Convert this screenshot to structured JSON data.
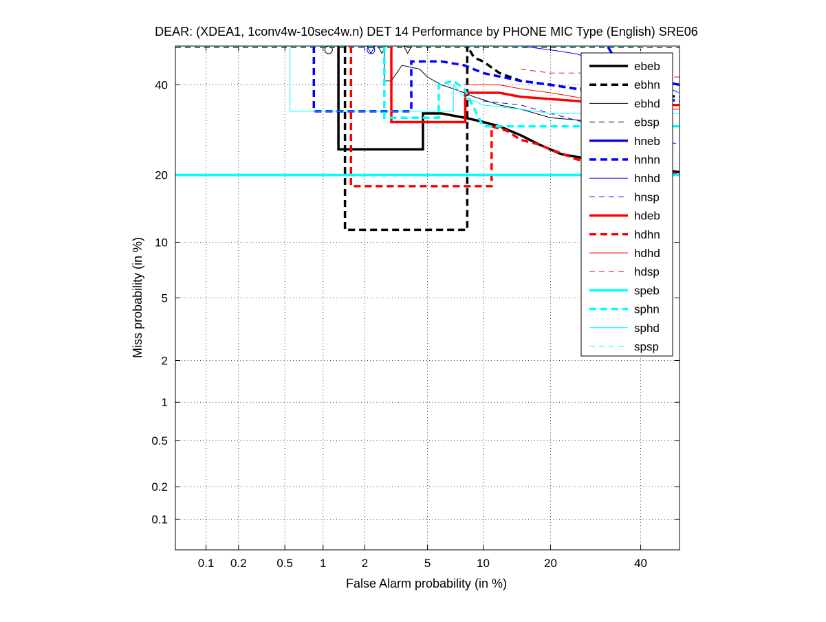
{
  "chart_data": {
    "type": "line",
    "title": "DEAR: (XDEA1, 1conv4w-10sec4w.n) DET 14 Performance by PHONE MIC Type (English) SRE06",
    "xlabel": "False Alarm probability (in %)",
    "ylabel": "Miss probability (in %)",
    "x_scale": "probit",
    "y_scale": "probit",
    "xlim": [
      0.05,
      50
    ],
    "ylim": [
      0.05,
      50
    ],
    "grid": true,
    "legend_position": "top-right",
    "x_ticks": [
      {
        "value": 0.1,
        "label": "0.1"
      },
      {
        "value": 0.2,
        "label": "0.2"
      },
      {
        "value": 0.5,
        "label": "0.5"
      },
      {
        "value": 1,
        "label": "1"
      },
      {
        "value": 2,
        "label": "2"
      },
      {
        "value": 5,
        "label": "5"
      },
      {
        "value": 10,
        "label": "10"
      },
      {
        "value": 20,
        "label": "20"
      },
      {
        "value": 40,
        "label": "40"
      }
    ],
    "y_ticks": [
      {
        "value": 0.1,
        "label": "0.1"
      },
      {
        "value": 0.2,
        "label": "0.2"
      },
      {
        "value": 0.5,
        "label": "0.5"
      },
      {
        "value": 1,
        "label": "1"
      },
      {
        "value": 2,
        "label": "2"
      },
      {
        "value": 5,
        "label": "5"
      },
      {
        "value": 10,
        "label": "10"
      },
      {
        "value": 20,
        "label": "20"
      },
      {
        "value": 40,
        "label": "40"
      }
    ],
    "series": [
      {
        "name": "ebeb",
        "color": "#000000",
        "dash": "solid",
        "width": "thick",
        "points": [
          [
            1.3,
            50
          ],
          [
            1.3,
            25
          ],
          [
            4.7,
            25
          ],
          [
            4.7,
            33
          ],
          [
            6,
            33
          ],
          [
            8,
            32
          ],
          [
            9,
            31.5
          ],
          [
            10,
            31
          ],
          [
            12,
            30
          ],
          [
            15,
            28
          ],
          [
            18,
            26
          ],
          [
            22,
            24
          ],
          [
            28,
            23
          ],
          [
            35,
            22
          ],
          [
            45,
            21
          ],
          [
            50,
            20.5
          ]
        ],
        "marker": {
          "shape": "circle",
          "x": 1.1,
          "y": 49
        }
      },
      {
        "name": "ebhn",
        "color": "#000000",
        "dash": "dashed",
        "width": "thick",
        "points": [
          [
            1.45,
            50
          ],
          [
            1.45,
            11.5
          ],
          [
            8.3,
            11.5
          ],
          [
            8.3,
            50
          ],
          [
            9,
            47
          ],
          [
            10,
            46
          ],
          [
            12,
            43
          ],
          [
            15,
            41
          ],
          [
            20,
            40
          ],
          [
            25,
            39
          ],
          [
            30,
            39
          ],
          [
            50,
            37
          ]
        ],
        "marker": {
          "shape": "triangle-down",
          "x": 2.6,
          "y": 49
        }
      },
      {
        "name": "ebhd",
        "color": "#000000",
        "dash": "solid",
        "width": "thin",
        "points": [
          [
            2.7,
            50
          ],
          [
            2.7,
            41
          ],
          [
            3,
            41
          ],
          [
            3.5,
            45
          ],
          [
            4.5,
            44
          ],
          [
            5,
            42
          ],
          [
            6,
            40
          ],
          [
            7,
            39
          ],
          [
            8,
            38
          ],
          [
            9,
            37
          ],
          [
            12,
            35
          ],
          [
            15,
            34
          ],
          [
            20,
            32
          ],
          [
            30,
            31
          ],
          [
            40,
            30
          ],
          [
            50,
            30
          ]
        ],
        "marker": {
          "shape": "triangle-down",
          "x": 3.8,
          "y": 49
        }
      },
      {
        "name": "ebsp",
        "color": "#000000",
        "dash": "dashed",
        "width": "thin",
        "points": [
          [
            0.05,
            49.6
          ],
          [
            10,
            49.6
          ],
          [
            50,
            49.6
          ]
        ]
      },
      {
        "name": "hneb",
        "color": "#0000ff",
        "dash": "solid",
        "width": "thick",
        "points": [
          [
            32,
            49.8
          ],
          [
            33,
            48
          ],
          [
            36,
            44
          ],
          [
            40,
            42
          ],
          [
            45,
            41
          ],
          [
            50,
            40
          ]
        ]
      },
      {
        "name": "hnhn",
        "color": "#0000ff",
        "dash": "dashed",
        "width": "thick",
        "points": [
          [
            0.85,
            50
          ],
          [
            0.85,
            33.5
          ],
          [
            4,
            33.5
          ],
          [
            4,
            46
          ],
          [
            6,
            46
          ],
          [
            8,
            45
          ],
          [
            10,
            43
          ],
          [
            15,
            41
          ],
          [
            20,
            40
          ],
          [
            25,
            39
          ],
          [
            30,
            38
          ],
          [
            40,
            37
          ],
          [
            50,
            36
          ]
        ],
        "marker": {
          "shape": "circle",
          "x": 2.2,
          "y": 49
        }
      },
      {
        "name": "hnhd",
        "color": "#0000ff",
        "dash": "solid",
        "width": "thin",
        "points": [
          [
            15,
            50
          ],
          [
            20,
            49
          ],
          [
            25,
            48
          ],
          [
            30,
            46
          ],
          [
            35,
            44
          ],
          [
            40,
            42
          ],
          [
            45,
            40
          ],
          [
            50,
            38
          ]
        ],
        "marker": {
          "shape": "triangle-down",
          "x": 2.2,
          "y": 49
        }
      },
      {
        "name": "hnsp",
        "color": "#0000ff",
        "dash": "dashed",
        "width": "thin",
        "points": [
          [
            10,
            36
          ],
          [
            15,
            35
          ],
          [
            20,
            33
          ],
          [
            30,
            30
          ],
          [
            40,
            28
          ],
          [
            50,
            26
          ]
        ]
      },
      {
        "name": "hdeb",
        "color": "#ff0000",
        "dash": "solid",
        "width": "thick",
        "points": [
          [
            3,
            50
          ],
          [
            3,
            31
          ],
          [
            8.1,
            31
          ],
          [
            8.1,
            38
          ],
          [
            12,
            38
          ],
          [
            15,
            37
          ],
          [
            25,
            36
          ],
          [
            35,
            35
          ],
          [
            50,
            35
          ]
        ]
      },
      {
        "name": "hdhn",
        "color": "#ff0000",
        "dash": "dashed",
        "width": "thick",
        "points": [
          [
            1.6,
            50
          ],
          [
            1.6,
            18
          ],
          [
            11,
            18
          ],
          [
            11,
            30
          ],
          [
            13,
            29
          ],
          [
            15,
            27
          ],
          [
            18,
            26
          ],
          [
            20,
            25
          ],
          [
            25,
            23
          ],
          [
            30,
            22
          ],
          [
            40,
            21
          ],
          [
            50,
            20
          ]
        ]
      },
      {
        "name": "hdhd",
        "color": "#ff0000",
        "dash": "solid",
        "width": "thin",
        "points": [
          [
            8,
            40
          ],
          [
            12,
            40
          ],
          [
            15,
            39
          ],
          [
            20,
            38
          ],
          [
            30,
            36
          ],
          [
            40,
            34
          ],
          [
            50,
            34
          ]
        ]
      },
      {
        "name": "hdsp",
        "color": "#ff0000",
        "dash": "dashed",
        "width": "thin",
        "points": [
          [
            15,
            44
          ],
          [
            20,
            43
          ],
          [
            30,
            43
          ],
          [
            40,
            42
          ],
          [
            50,
            42
          ]
        ]
      },
      {
        "name": "speb",
        "color": "#00ffff",
        "dash": "solid",
        "width": "thick",
        "points": [
          [
            0.05,
            20
          ],
          [
            50,
            20
          ]
        ]
      },
      {
        "name": "sphn",
        "color": "#00ffff",
        "dash": "dashed",
        "width": "thick",
        "points": [
          [
            2.7,
            50
          ],
          [
            2.7,
            32
          ],
          [
            5.8,
            32
          ],
          [
            5.8,
            40
          ],
          [
            7,
            41
          ],
          [
            8,
            39
          ],
          [
            10,
            30
          ],
          [
            20,
            30
          ],
          [
            30,
            30
          ],
          [
            50,
            30
          ]
        ]
      },
      {
        "name": "sphd",
        "color": "#00ffff",
        "dash": "solid",
        "width": "thin",
        "points": [
          [
            0.55,
            50
          ],
          [
            0.55,
            33.5
          ],
          [
            7,
            33.5
          ],
          [
            7,
            40
          ],
          [
            8,
            37
          ],
          [
            10,
            35
          ],
          [
            15,
            34
          ],
          [
            20,
            33
          ],
          [
            30,
            33
          ],
          [
            50,
            33
          ]
        ]
      },
      {
        "name": "spsp",
        "color": "#00ffff",
        "dash": "dashed",
        "width": "thin",
        "points": [
          [
            0.05,
            49.9
          ],
          [
            30,
            49.9
          ],
          [
            40,
            49.9
          ],
          [
            40,
            40
          ],
          [
            50,
            38
          ]
        ]
      }
    ]
  }
}
